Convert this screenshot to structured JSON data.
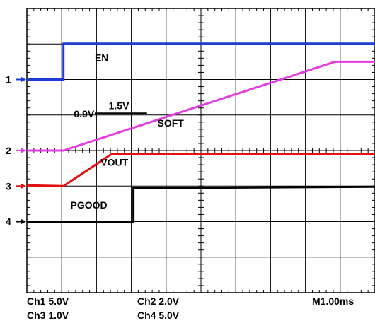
{
  "chart_data": {
    "type": "line",
    "title": "",
    "xlabel": "",
    "ylabel": "",
    "grid": true,
    "x_divisions": 10,
    "y_divisions": 8,
    "channel_markers": [
      {
        "label": "1",
        "color": "#1e3cd2",
        "y_div": 2.0
      },
      {
        "label": "2",
        "color": "#e23ce2",
        "y_div": 4.0
      },
      {
        "label": "3",
        "color": "#e01010",
        "y_div": 5.0
      },
      {
        "label": "4",
        "color": "#000000",
        "y_div": 6.0
      }
    ],
    "series": [
      {
        "name": "EN",
        "color": "#1e3cd2",
        "points": [
          [
            0,
            2.0
          ],
          [
            1.05,
            2.0
          ],
          [
            1.05,
            0.99
          ],
          [
            10,
            0.99
          ]
        ]
      },
      {
        "name": "SOFT",
        "color": "#e23ce2",
        "points": [
          [
            0,
            4.0
          ],
          [
            1.05,
            4.0
          ],
          [
            8.85,
            1.5
          ],
          [
            10,
            1.5
          ]
        ]
      },
      {
        "name": "VOUT",
        "color": "#e01010",
        "points": [
          [
            0,
            4.98
          ],
          [
            1.05,
            5.0
          ],
          [
            2.45,
            4.09
          ],
          [
            10,
            4.09
          ]
        ]
      },
      {
        "name": "PGOOD",
        "color": "#000000",
        "points": [
          [
            0,
            6.0
          ],
          [
            3.06,
            6.0
          ],
          [
            3.06,
            5.06
          ],
          [
            10,
            5.02
          ]
        ]
      }
    ],
    "annotations": [
      {
        "text": "EN",
        "x_div": 1.95,
        "y_div": 1.48
      },
      {
        "text": "1.5V",
        "x_div": 2.35,
        "y_div": 2.84
      },
      {
        "text": "0.9V",
        "x_div": 1.35,
        "y_div": 3.06
      },
      {
        "text": "SOFT",
        "x_div": 3.75,
        "y_div": 3.32
      },
      {
        "text": "VOUT",
        "x_div": 2.12,
        "y_div": 4.43
      },
      {
        "text": "PGOOD",
        "x_div": 1.25,
        "y_div": 5.63
      }
    ],
    "bracket": {
      "x1_div": 1.95,
      "x2_div": 3.45,
      "y_div": 2.95
    }
  },
  "footer": {
    "ch1": "Ch1  5.0V",
    "ch2": "Ch2  2.0V",
    "ch3": "Ch3  1.0V",
    "ch4": "Ch4  5.0V",
    "timebase": "M1.00ms"
  }
}
